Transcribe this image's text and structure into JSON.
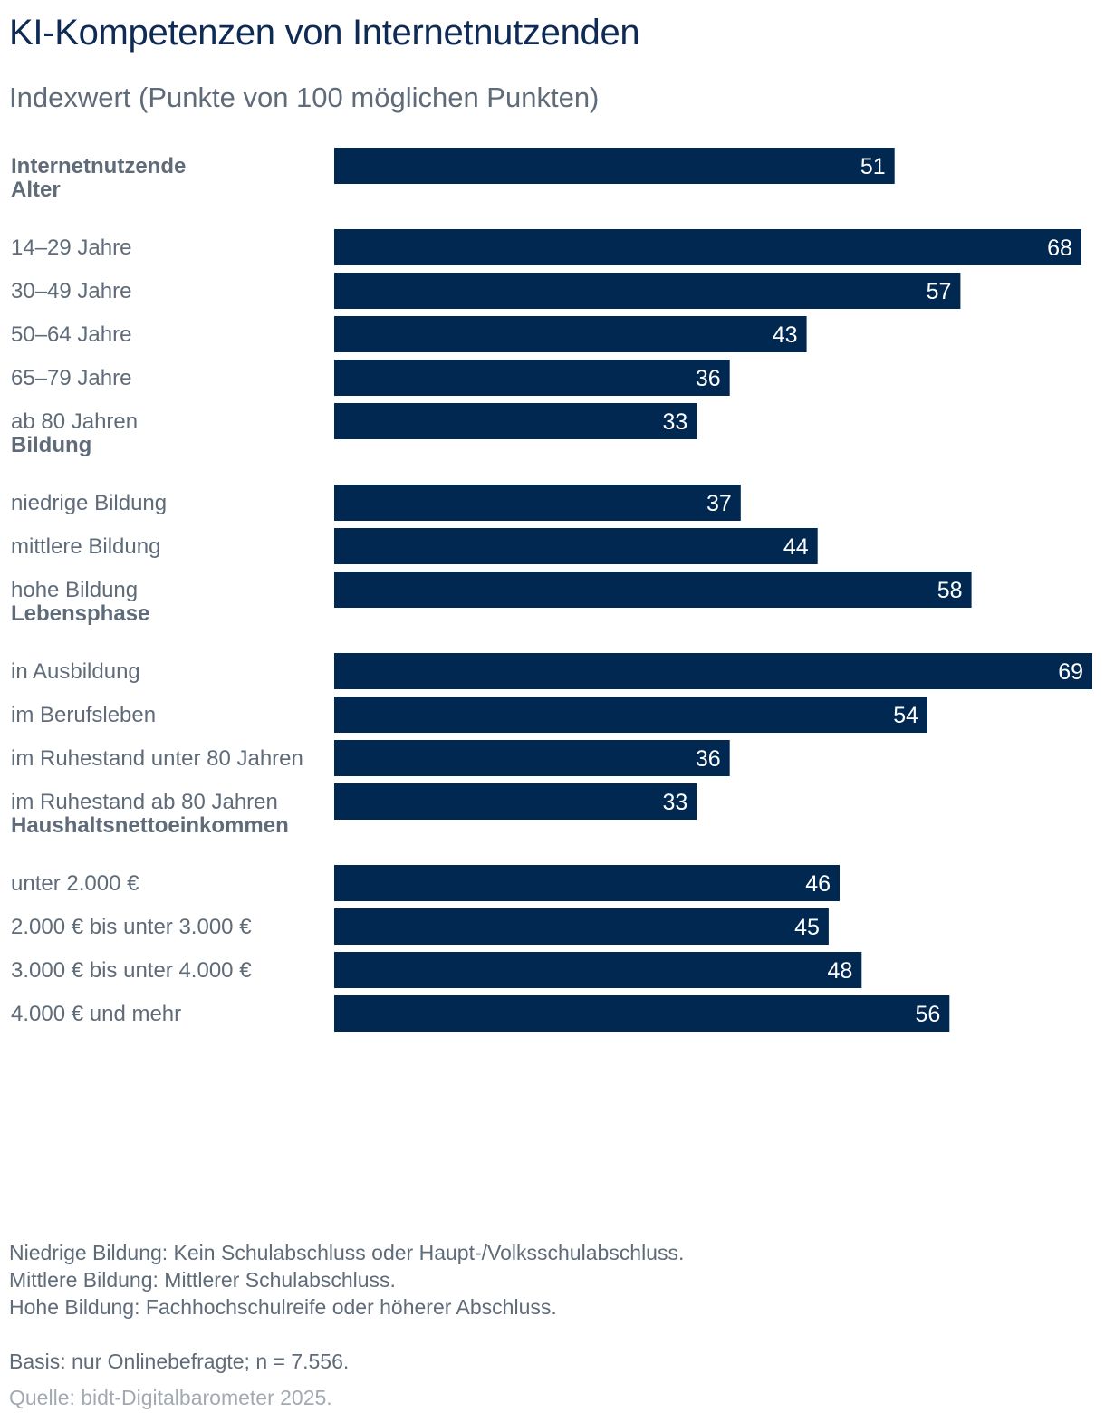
{
  "chart_data": {
    "type": "bar",
    "orientation": "horizontal",
    "title": "KI-Kompetenzen von Internetnutzenden",
    "subtitle": "Indexwert (Punkte von 100 möglichen Punkten)",
    "xlim": [
      0,
      100
    ],
    "bar_color": "#012850",
    "groups": [
      {
        "heading": "",
        "items": [
          {
            "label": "Internetnutzende",
            "value": 51,
            "bold": true
          }
        ]
      },
      {
        "heading": "Alter",
        "items": [
          {
            "label": "14–29 Jahre",
            "value": 68
          },
          {
            "label": "30–49 Jahre",
            "value": 57
          },
          {
            "label": "50–64 Jahre",
            "value": 43
          },
          {
            "label": "65–79 Jahre",
            "value": 36
          },
          {
            "label": "ab 80 Jahren",
            "value": 33
          }
        ]
      },
      {
        "heading": "Bildung",
        "items": [
          {
            "label": "niedrige Bildung",
            "value": 37
          },
          {
            "label": "mittlere Bildung",
            "value": 44
          },
          {
            "label": "hohe Bildung",
            "value": 58
          }
        ]
      },
      {
        "heading": "Lebensphase",
        "items": [
          {
            "label": "in Ausbildung",
            "value": 69
          },
          {
            "label": "im Berufsleben",
            "value": 54
          },
          {
            "label": "im Ruhestand unter 80 Jahren",
            "value": 36
          },
          {
            "label": "im Ruhestand ab 80 Jahren",
            "value": 33
          }
        ]
      },
      {
        "heading": "Haushaltsnettoeinkommen",
        "items": [
          {
            "label": "unter 2.000 €",
            "value": 46
          },
          {
            "label": "2.000 € bis unter 3.000 €",
            "value": 45
          },
          {
            "label": "3.000 € bis unter 4.000 €",
            "value": 48
          },
          {
            "label": "4.000 € und mehr",
            "value": 56
          }
        ]
      }
    ]
  },
  "notes": {
    "line1": "Niedrige Bildung: Kein Schulabschluss oder Haupt-/Volksschulabschluss.",
    "line2": "Mittlere Bildung: Mittlerer Schulabschluss.",
    "line3": "Hohe Bildung: Fachhochschulreife oder höherer Abschluss.",
    "basis": "Basis: nur Onlinebefragte; n = 7.556.",
    "source": "Quelle: bidt-Digitalbarometer 2025."
  },
  "colors": {
    "title": "#0e2a55",
    "label": "#5f6b78",
    "heading": "#5f6b78",
    "value_label": "#ffffff",
    "source": "#a3a9b1"
  }
}
